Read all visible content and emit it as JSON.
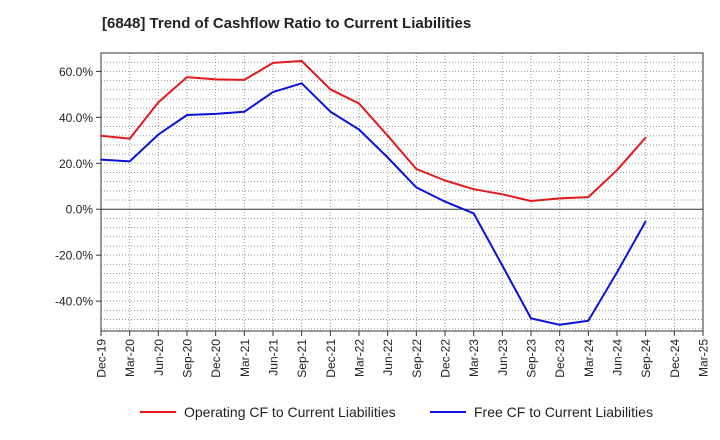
{
  "title": "[6848]  Trend of Cashflow Ratio to Current Liabilities",
  "chart_data": {
    "type": "line",
    "title": "[6848]  Trend of Cashflow Ratio to Current Liabilities",
    "xlabel": "",
    "ylabel": "",
    "x": [
      "Dec-19",
      "Mar-20",
      "Jun-20",
      "Sep-20",
      "Dec-20",
      "Mar-21",
      "Jun-21",
      "Sep-21",
      "Dec-21",
      "Mar-22",
      "Jun-22",
      "Sep-22",
      "Dec-22",
      "Mar-23",
      "Jun-23",
      "Sep-23",
      "Dec-23",
      "Mar-24",
      "Jun-24",
      "Sep-24",
      "Dec-24",
      "Mar-25"
    ],
    "ylim": [
      -53,
      68
    ],
    "yticks": [
      60,
      40,
      20,
      0,
      -20,
      -40
    ],
    "ytick_labels": [
      "60.0%",
      "40.0%",
      "20.0%",
      "0.0%",
      "-20.0%",
      "-40.0%"
    ],
    "grid": true,
    "legend_position": "bottom",
    "series": [
      {
        "name": "Operating CF to Current Liabilities",
        "color": "#e31a1c",
        "values": [
          32.0,
          30.7,
          46.5,
          57.5,
          56.5,
          56.3,
          63.7,
          64.5,
          52.2,
          46.0,
          32.0,
          17.5,
          12.5,
          8.7,
          6.5,
          3.6,
          4.7,
          5.3,
          17.0,
          31.2,
          null,
          null
        ]
      },
      {
        "name": "Free CF to Current Liabilities",
        "color": "#0a14d8",
        "values": [
          21.6,
          20.8,
          32.5,
          41.0,
          41.5,
          42.4,
          51.0,
          54.8,
          42.5,
          34.7,
          22.5,
          9.5,
          3.3,
          -1.8,
          -24.5,
          -47.5,
          -50.3,
          -48.5,
          -27.5,
          -5.2,
          null,
          null
        ]
      }
    ]
  }
}
